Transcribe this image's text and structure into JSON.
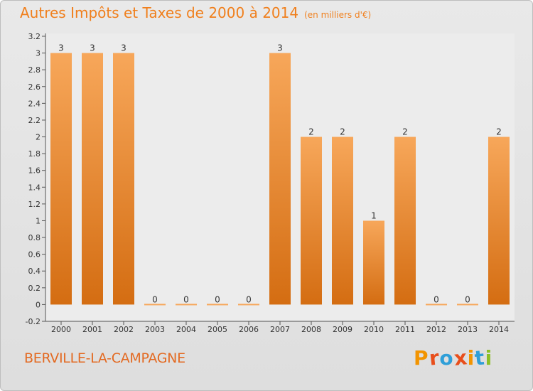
{
  "title": "Autres Impôts et Taxes de 2000 à 2014",
  "subtitle": "(en milliers d'€)",
  "commune": "BERVILLE-LA-CAMPAGNE",
  "logo": {
    "text": "Proxiti",
    "colors": [
      "#f29400",
      "#e84e1b",
      "#2f9fd8",
      "#e84e1b",
      "#f29400",
      "#2f9fd8",
      "#8cbf26"
    ]
  },
  "colors": {
    "accent": "#f07f1c",
    "bar_light": "#f7a75a",
    "bar_dark": "#d46d12"
  },
  "chart_data": {
    "type": "bar",
    "categories": [
      "2000",
      "2001",
      "2002",
      "2003",
      "2004",
      "2005",
      "2006",
      "2007",
      "2008",
      "2009",
      "2010",
      "2011",
      "2012",
      "2013",
      "2014"
    ],
    "values": [
      3,
      3,
      3,
      0,
      0,
      0,
      0,
      3,
      2,
      2,
      1,
      2,
      0,
      0,
      2
    ],
    "data_labels": [
      "3",
      "3",
      "3",
      "0",
      "0",
      "0",
      "0",
      "3",
      "2",
      "2",
      "1",
      "2",
      "0",
      "0",
      "2"
    ],
    "ylim": [
      -0.2,
      3.2
    ],
    "yticks": [
      "-0.2",
      "0",
      "0.2",
      "0.4",
      "0.6",
      "0.8",
      "1",
      "1.2",
      "1.4",
      "1.6",
      "1.8",
      "2",
      "2.2",
      "2.4",
      "2.6",
      "2.8",
      "3",
      "3.2"
    ],
    "xlabel": "",
    "ylabel": "",
    "grid": false
  }
}
